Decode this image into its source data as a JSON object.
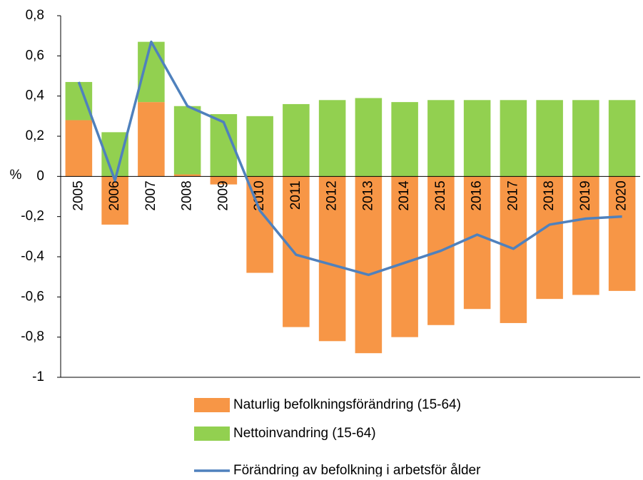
{
  "chart_data": {
    "type": "bar",
    "stacked": true,
    "ylabel": "%",
    "categories": [
      "2005",
      "2006",
      "2007",
      "2008",
      "2009",
      "2010",
      "2011",
      "2012",
      "2013",
      "2014",
      "2015",
      "2016",
      "2017",
      "2018",
      "2019",
      "2020"
    ],
    "series": [
      {
        "name": "Naturlig befolkningsförändring (15-64)",
        "color": "#f79646",
        "values": [
          0.28,
          -0.24,
          0.37,
          0.01,
          -0.04,
          -0.48,
          -0.75,
          -0.82,
          -0.88,
          -0.8,
          -0.74,
          -0.66,
          -0.73,
          -0.61,
          -0.59,
          -0.57
        ]
      },
      {
        "name": "Nettoinvandring (15-64)",
        "color": "#92d050",
        "values": [
          0.19,
          0.22,
          0.3,
          0.34,
          0.31,
          0.3,
          0.36,
          0.38,
          0.39,
          0.37,
          0.38,
          0.38,
          0.38,
          0.38,
          0.38,
          0.38
        ]
      },
      {
        "name": "Förändring av befolkning i arbetsför ålder",
        "type": "line",
        "color": "#4f81bd",
        "values": [
          0.47,
          -0.02,
          0.67,
          0.35,
          0.27,
          -0.17,
          -0.39,
          -0.44,
          -0.49,
          -0.43,
          -0.37,
          -0.29,
          -0.36,
          -0.24,
          -0.21,
          -0.2
        ]
      }
    ],
    "ylim": [
      -1,
      0.8
    ],
    "yticks": [
      {
        "value": 0.8,
        "label": "0,8"
      },
      {
        "value": 0.6,
        "label": "0,6"
      },
      {
        "value": 0.4,
        "label": "0,4"
      },
      {
        "value": 0.2,
        "label": "0,2"
      },
      0,
      {
        "value": -0.2,
        "label": "-0,2"
      },
      {
        "value": -0.4,
        "label": "-0,4"
      },
      {
        "value": -0.6,
        "label": "-0,6"
      },
      {
        "value": -0.8,
        "label": "-0,8"
      },
      -1
    ]
  }
}
